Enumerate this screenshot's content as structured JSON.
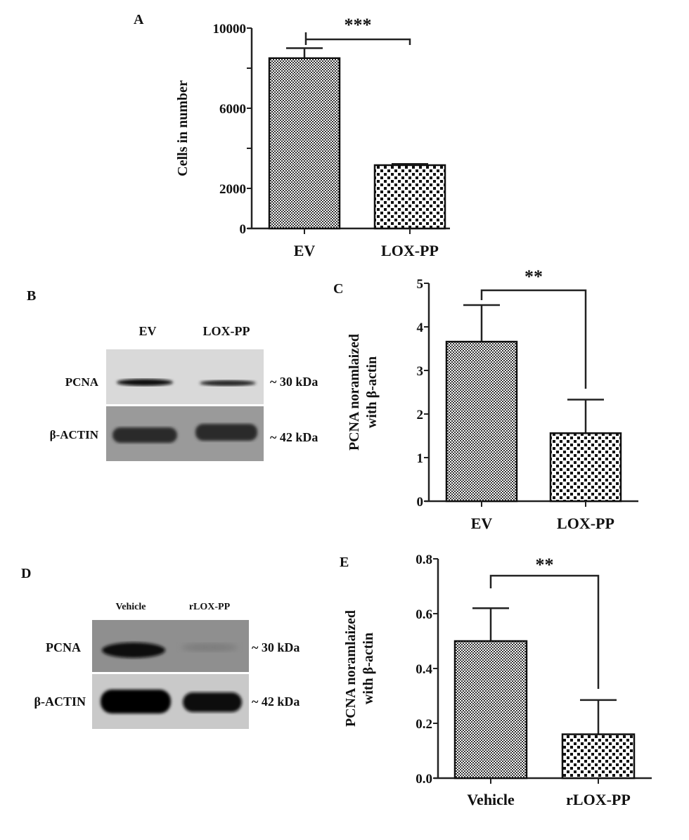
{
  "panel_labels": {
    "a": "A",
    "b": "B",
    "c": "C",
    "d": "D",
    "e": "E"
  },
  "chart_data": [
    {
      "id": "A",
      "type": "bar",
      "categories": [
        "EV",
        "LOX-PP"
      ],
      "values": [
        8500,
        3160
      ],
      "error_upper": [
        9000,
        3220
      ],
      "ylabel": "Cells in number",
      "ylim": [
        0,
        10000
      ],
      "yticks": [
        0,
        2000,
        4000,
        6000,
        8000,
        10000
      ],
      "ytick_labels": [
        "0",
        "2000",
        "",
        "6000",
        "",
        "10000"
      ],
      "significance": "***",
      "patterns": [
        "fine-checker",
        "coarse-checker"
      ]
    },
    {
      "id": "C",
      "type": "bar",
      "categories": [
        "EV",
        "LOX-PP"
      ],
      "values": [
        3.66,
        1.56
      ],
      "error_upper": [
        4.5,
        2.33
      ],
      "ylabel": [
        "PCNA noramlaized",
        "with β-actin"
      ],
      "ylim": [
        0,
        5
      ],
      "yticks": [
        0,
        1,
        2,
        3,
        4,
        5
      ],
      "ytick_labels": [
        "0",
        "1",
        "2",
        "3",
        "4",
        "5"
      ],
      "significance": "**",
      "patterns": [
        "fine-checker",
        "coarse-checker"
      ]
    },
    {
      "id": "E",
      "type": "bar",
      "categories": [
        "Vehicle",
        "rLOX-PP"
      ],
      "values": [
        0.5,
        0.16
      ],
      "error_upper": [
        0.62,
        0.285
      ],
      "ylabel": [
        "PCNA noramlaized",
        "with β-actin"
      ],
      "ylim": [
        0,
        0.8
      ],
      "yticks": [
        0,
        0.2,
        0.4,
        0.6,
        0.8
      ],
      "ytick_labels": [
        "0.0",
        "0.2",
        "0.4",
        "0.6",
        "0.8"
      ],
      "significance": "**",
      "patterns": [
        "fine-checker",
        "coarse-checker"
      ]
    }
  ],
  "blots": {
    "b": {
      "lanes": [
        "EV",
        "LOX-PP"
      ],
      "rows": [
        {
          "label": "PCNA",
          "size": "~ 30 kDa"
        },
        {
          "label": "β-ACTIN",
          "size": "~ 42 kDa"
        }
      ]
    },
    "d": {
      "lanes": [
        "Vehicle",
        "rLOX-PP"
      ],
      "rows": [
        {
          "label": "PCNA",
          "size": "~ 30 kDa"
        },
        {
          "label": "β-ACTIN",
          "size": "~ 42 kDa"
        }
      ]
    }
  }
}
